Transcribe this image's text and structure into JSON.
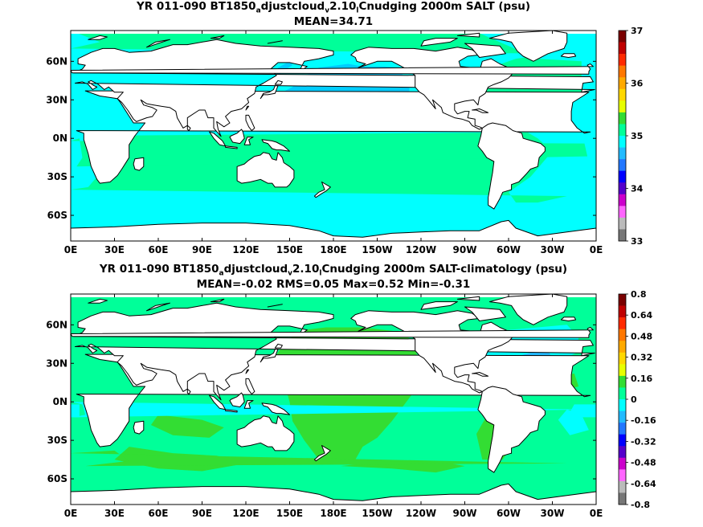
{
  "chart_data": [
    {
      "type": "heatmap",
      "title": {
        "pre": "YR 011-090 BT1850",
        "sub1": "a",
        "mid1": "djustcloud",
        "sub2": "v",
        "mid2": "2.10",
        "sub3": "l",
        "post": "Cnudging 2000m SALT (psu)"
      },
      "subtitle": "MEAN=34.71",
      "xticks": [
        "0E",
        "30E",
        "60E",
        "90E",
        "120E",
        "150E",
        "180E",
        "150W",
        "120W",
        "90W",
        "60W",
        "30W",
        "0E"
      ],
      "yticks": [
        "60N",
        "30N",
        "0N",
        "30S",
        "60S"
      ],
      "lat_range": [
        -80,
        84
      ],
      "lon_range": [
        0,
        360
      ],
      "colorbar": {
        "labels": [
          "37",
          "36",
          "35",
          "34",
          "33"
        ],
        "range": [
          33,
          37
        ],
        "colors": [
          "#7a0000",
          "#c00000",
          "#ff2a00",
          "#ff7700",
          "#ffaa00",
          "#ffd800",
          "#e8ff00",
          "#33dd33",
          "#00ff99",
          "#00ffff",
          "#22bbff",
          "#2277ff",
          "#0000ff",
          "#5500cc",
          "#cc00cc",
          "#ff66ff",
          "#bbbbbb",
          "#777777"
        ]
      }
    },
    {
      "type": "heatmap",
      "title": {
        "pre": "YR 011-090 BT1850",
        "sub1": "a",
        "mid1": "djustcloud",
        "sub2": "v",
        "mid2": "2.10",
        "sub3": "l",
        "post": "Cnudging 2000m SALT-climatology (psu)"
      },
      "subtitle": "MEAN=-0.02   RMS=0.05   Max=0.52   Min=-0.31",
      "xticks": [
        "0E",
        "30E",
        "60E",
        "90E",
        "120E",
        "150E",
        "180E",
        "150W",
        "120W",
        "90W",
        "60W",
        "30W",
        "0E"
      ],
      "yticks": [
        "60N",
        "30N",
        "0N",
        "30S",
        "60S"
      ],
      "lat_range": [
        -80,
        84
      ],
      "lon_range": [
        0,
        360
      ],
      "colorbar": {
        "labels": [
          "0.8",
          "0.64",
          "0.48",
          "0.32",
          "0.16",
          "0",
          "-0.16",
          "-0.32",
          "-0.48",
          "-0.64",
          "-0.8"
        ],
        "range": [
          -0.8,
          0.8
        ],
        "colors": [
          "#7a0000",
          "#c00000",
          "#ff2a00",
          "#ff7700",
          "#ffaa00",
          "#ffd800",
          "#e8ff00",
          "#33dd33",
          "#00ff99",
          "#00ffff",
          "#22bbff",
          "#2277ff",
          "#0000ff",
          "#5500cc",
          "#cc00cc",
          "#ff66ff",
          "#bbbbbb",
          "#777777"
        ]
      }
    }
  ]
}
